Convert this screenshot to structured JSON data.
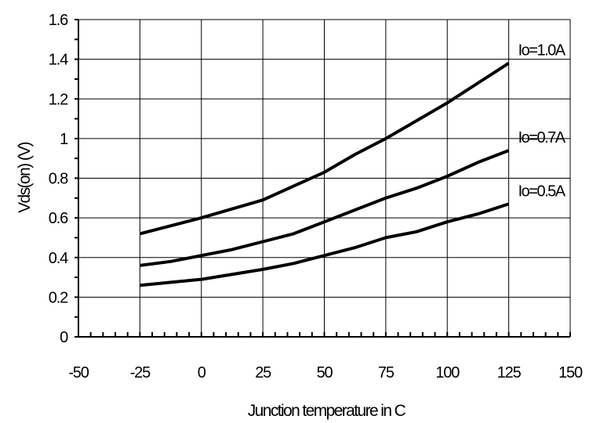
{
  "chart_data": {
    "type": "line",
    "title": "",
    "xlabel": "Junction temperature in C",
    "ylabel": "Vds(on) (V)",
    "xlim": [
      -50,
      150
    ],
    "ylim": [
      0,
      1.6
    ],
    "xticks": [
      -50,
      -25,
      0,
      25,
      50,
      75,
      100,
      125,
      150
    ],
    "yticks": [
      0,
      0.2,
      0.4,
      0.6,
      0.8,
      1,
      1.2,
      1.4,
      1.6
    ],
    "xtick_labels": [
      "-50",
      "-25",
      "0",
      "25",
      "50",
      "75",
      "100",
      "125",
      "150"
    ],
    "ytick_labels": [
      "0",
      "0.2",
      "0.4",
      "0.6",
      "0.8",
      "1",
      "1.2",
      "1.4",
      "1.6"
    ],
    "grid": true,
    "legend": "inline labels at line ends",
    "series": [
      {
        "name": "Io=1.0A",
        "x": [
          -25,
          0,
          25,
          37.5,
          50,
          62.5,
          75,
          87.5,
          100,
          112.5,
          125
        ],
        "y": [
          0.52,
          0.6,
          0.69,
          0.76,
          0.83,
          0.92,
          1.0,
          1.09,
          1.18,
          1.28,
          1.38
        ]
      },
      {
        "name": "Io=0.7A",
        "x": [
          -25,
          -12.5,
          0,
          12.5,
          25,
          37.5,
          50,
          62.5,
          75,
          87.5,
          100,
          112.5,
          125
        ],
        "y": [
          0.36,
          0.38,
          0.41,
          0.44,
          0.48,
          0.52,
          0.58,
          0.64,
          0.7,
          0.75,
          0.81,
          0.88,
          0.94
        ]
      },
      {
        "name": "Io=0.5A",
        "x": [
          -25,
          0,
          25,
          37.5,
          50,
          62.5,
          75,
          87.5,
          100,
          112.5,
          125
        ],
        "y": [
          0.26,
          0.29,
          0.34,
          0.37,
          0.41,
          0.45,
          0.5,
          0.53,
          0.58,
          0.62,
          0.67
        ]
      }
    ]
  }
}
